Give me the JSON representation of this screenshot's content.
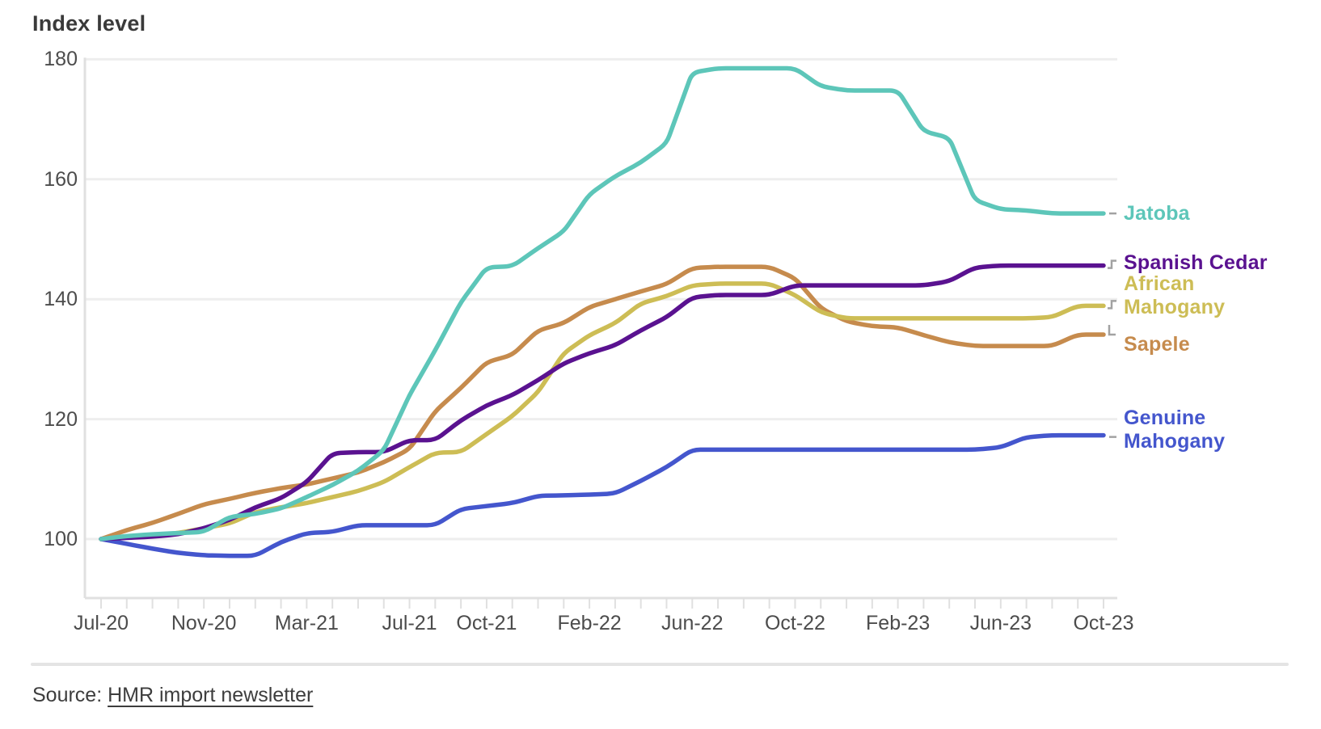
{
  "header": {
    "title": "Index level"
  },
  "chart_data": {
    "type": "line",
    "title": "Index level",
    "grid": true,
    "legend_position": "right-of-line-ends",
    "ylim": [
      90,
      185
    ],
    "y_ticks": [
      100,
      120,
      140,
      160,
      180
    ],
    "x": [
      "Jul-20",
      "Aug-20",
      "Sep-20",
      "Oct-20",
      "Nov-20",
      "Dec-20",
      "Jan-21",
      "Feb-21",
      "Mar-21",
      "Apr-21",
      "May-21",
      "Jun-21",
      "Jul-21",
      "Aug-21",
      "Sep-21",
      "Oct-21",
      "Nov-21",
      "Dec-21",
      "Jan-22",
      "Feb-22",
      "Mar-22",
      "Apr-22",
      "May-22",
      "Jun-22",
      "Jul-22",
      "Aug-22",
      "Sep-22",
      "Oct-22",
      "Nov-22",
      "Dec-22",
      "Jan-23",
      "Feb-23",
      "Mar-23",
      "Apr-23",
      "May-23",
      "Jun-23",
      "Jul-23",
      "Aug-23",
      "Sep-23",
      "Oct-23"
    ],
    "x_ticks_shown": [
      {
        "label": "Jul-20",
        "index": 0
      },
      {
        "label": "Nov-20",
        "index": 4
      },
      {
        "label": "Mar-21",
        "index": 8
      },
      {
        "label": "Jul-21",
        "index": 12
      },
      {
        "label": "Oct-21",
        "index": 15
      },
      {
        "label": "Feb-22",
        "index": 19
      },
      {
        "label": "Jun-22",
        "index": 23
      },
      {
        "label": "Oct-22",
        "index": 27
      },
      {
        "label": "Feb-23",
        "index": 31
      },
      {
        "label": "Jun-23",
        "index": 35
      },
      {
        "label": "Oct-23",
        "index": 39
      }
    ],
    "series": [
      {
        "name": "Sapele",
        "color": "#c68b4d",
        "values": [
          100,
          101.5,
          102.7,
          104.2,
          105.8,
          106.7,
          107.7,
          108.5,
          109.1,
          110.1,
          111.1,
          112.8,
          115,
          121.3,
          125.2,
          129.5,
          130.7,
          134.8,
          136,
          138.7,
          140,
          141.3,
          142.5,
          145.2,
          145.4,
          145.4,
          145.4,
          143.5,
          138.5,
          136.3,
          135.5,
          135.3,
          134,
          132.8,
          132.2,
          132.2,
          132.2,
          132.2,
          134.1,
          134.1
        ]
      },
      {
        "name": "African Mahogany",
        "color": "#cdbd55",
        "values": [
          100,
          100.3,
          100.6,
          101,
          101.8,
          102.6,
          104.5,
          105.3,
          106,
          107,
          108,
          109.5,
          112,
          114.4,
          114.5,
          117.5,
          120.5,
          124.5,
          131,
          134,
          136,
          139.3,
          140.5,
          142.3,
          142.6,
          142.6,
          142.6,
          140.7,
          137.8,
          136.8,
          136.8,
          136.8,
          136.8,
          136.8,
          136.8,
          136.8,
          136.8,
          137,
          138.9,
          138.9
        ]
      },
      {
        "name": "Genuine Mahogany",
        "color": "#4456cd",
        "values": [
          100,
          99.2,
          98.4,
          97.7,
          97.3,
          97.2,
          97.2,
          99.5,
          101,
          101.2,
          102.3,
          102.3,
          102.3,
          102.3,
          105,
          105.5,
          106,
          107.2,
          107.3,
          107.4,
          107.6,
          109.7,
          112,
          114.9,
          114.9,
          114.9,
          114.9,
          114.9,
          114.9,
          114.9,
          114.9,
          114.9,
          114.9,
          114.9,
          114.9,
          115.3,
          117,
          117.3,
          117.3,
          117.3
        ]
      },
      {
        "name": "Spanish Cedar",
        "color": "#5a1290",
        "values": [
          100,
          100.2,
          100.4,
          100.8,
          101.8,
          103.2,
          105.3,
          106.8,
          109.5,
          114.3,
          114.5,
          114.5,
          116.5,
          116.5,
          119.8,
          122.3,
          124,
          126.5,
          129.3,
          131,
          132.3,
          134.8,
          137,
          140.3,
          140.7,
          140.7,
          140.7,
          142.3,
          142.3,
          142.3,
          142.3,
          142.3,
          142.3,
          143,
          145.3,
          145.6,
          145.6,
          145.6,
          145.6,
          145.6
        ]
      },
      {
        "name": "Jatoba",
        "color": "#5dc6b9",
        "values": [
          100,
          100.5,
          100.8,
          101,
          101.2,
          103.7,
          104.2,
          105.1,
          107,
          109,
          111.4,
          114.8,
          124,
          131.5,
          139.5,
          145.3,
          145.5,
          148.5,
          151.3,
          157.5,
          160.5,
          162.8,
          166,
          177.8,
          178.5,
          178.5,
          178.5,
          178.5,
          175.5,
          174.8,
          174.8,
          174.8,
          168,
          166.9,
          156.5,
          155,
          154.8,
          154.3,
          154.3,
          154.3
        ]
      }
    ]
  },
  "colors": {
    "grid": "#eeeeee",
    "axis": "#e0e0e0",
    "tick": "#e0e0e0",
    "connector": "#a2a2a2",
    "text": "#4c4c4c",
    "title": "#3a3a3a"
  },
  "source": {
    "prefix": "Source: ",
    "link_text": "HMR import newsletter"
  }
}
